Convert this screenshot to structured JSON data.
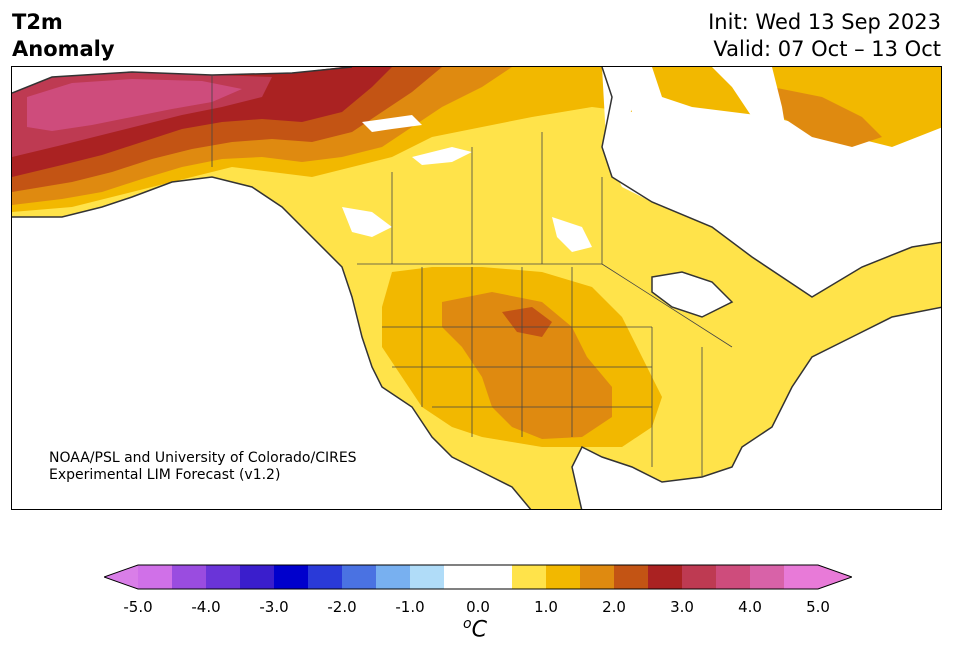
{
  "header": {
    "title_line1": "T2m",
    "title_line2": "Anomaly",
    "init_line": "Init: Wed 13 Sep 2023",
    "valid_line": "Valid: 07 Oct – 13 Oct"
  },
  "credit": {
    "line1": "NOAA/PSL and University of Colorado/CIRES",
    "line2": "Experimental LIM Forecast (v1.2)"
  },
  "colorbar": {
    "unit_base": "C",
    "unit_sup": "o",
    "ticks": [
      "-5.0",
      "-4.0",
      "-3.0",
      "-2.0",
      "-1.0",
      "0.0",
      "1.0",
      "2.0",
      "3.0",
      "4.0",
      "5.0"
    ],
    "under_color": "#d97ee8",
    "over_color": "#e87ad8",
    "colors": [
      "#d070e8",
      "#9a4ce0",
      "#6a34d8",
      "#3a1ecc",
      "#0000cc",
      "#2a3ad8",
      "#4a72e2",
      "#78b0f0",
      "#b0dcf8",
      "#ffffff",
      "#ffffff",
      "#ffe34a",
      "#f2b800",
      "#df8a10",
      "#c35414",
      "#aa2222",
      "#be3a52",
      "#ce4c7c",
      "#d862a8",
      "#e87ad8"
    ]
  },
  "legend_colors": {
    "plus_0_5_to_1": "#ffe34a",
    "plus_1_to_1_5": "#f2b800",
    "plus_1_5_to_2": "#df8a10",
    "plus_2_to_2_5": "#c35414",
    "plus_2_5_to_3": "#aa2222",
    "plus_3_to_3_5": "#be3a52",
    "plus_3_5_to_4": "#ce4c7c",
    "coastline": "#333333",
    "land_neutral": "#ffffff"
  }
}
